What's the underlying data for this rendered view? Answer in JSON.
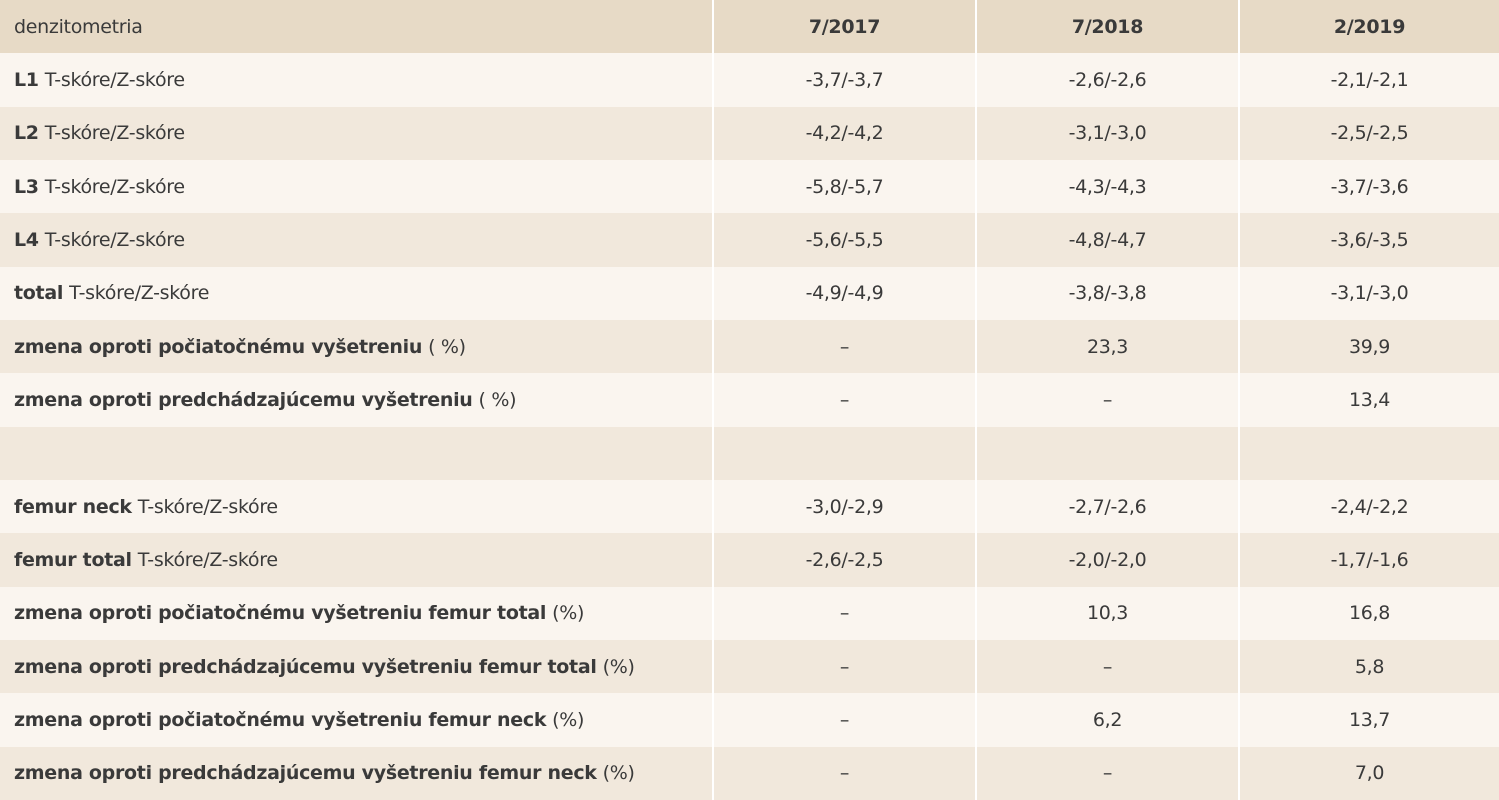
{
  "table": {
    "header": {
      "label": "denzitometria",
      "columns": [
        "7/2017",
        "7/2018",
        "2/2019"
      ]
    },
    "spine_rows": [
      {
        "bold": "L1",
        "normal": "T-skóre/Z-skóre",
        "values": [
          "-3,7/-3,7",
          "-2,6/-2,6",
          "-2,1/-2,1"
        ]
      },
      {
        "bold": "L2",
        "normal": "T-skóre/Z-skóre",
        "values": [
          "-4,2/-4,2",
          "-3,1/-3,0",
          "-2,5/-2,5"
        ]
      },
      {
        "bold": "L3",
        "normal": "T-skóre/Z-skóre",
        "values": [
          "-5,8/-5,7",
          "-4,3/-4,3",
          "-3,7/-3,6"
        ]
      },
      {
        "bold": "L4",
        "normal": "T-skóre/Z-skóre",
        "values": [
          "-5,6/-5,5",
          "-4,8/-4,7",
          "-3,6/-3,5"
        ]
      },
      {
        "bold": "total",
        "normal": "T-skóre/Z-skóre",
        "values": [
          "-4,9/-4,9",
          "-3,8/-3,8",
          "-3,1/-3,0"
        ]
      },
      {
        "bold": "zmena oproti počiatočnému vyšetreniu",
        "normal": "( %)",
        "values": [
          "–",
          "23,3",
          "39,9"
        ]
      },
      {
        "bold": "zmena oproti predchádzajúcemu vyšetreniu",
        "normal": "( %)",
        "values": [
          "–",
          "–",
          "13,4"
        ]
      }
    ],
    "femur_rows": [
      {
        "bold": "femur neck",
        "normal": "T-skóre/Z-skóre",
        "values": [
          "-3,0/-2,9",
          "-2,7/-2,6",
          "-2,4/-2,2"
        ]
      },
      {
        "bold": "femur total",
        "normal": "T-skóre/Z-skóre",
        "values": [
          "-2,6/-2,5",
          "-2,0/-2,0",
          "-1,7/-1,6"
        ]
      },
      {
        "bold": "zmena oproti počiatočnému vyšetreniu femur total",
        "normal": "(%)",
        "values": [
          "–",
          "10,3",
          "16,8"
        ]
      },
      {
        "bold": "zmena oproti predchádzajúcemu vyšetreniu femur total",
        "normal": "(%)",
        "values": [
          "–",
          "–",
          "5,8"
        ]
      },
      {
        "bold": "zmena oproti počiatočnému vyšetreniu femur neck",
        "normal": "(%)",
        "values": [
          "–",
          "6,2",
          "13,7"
        ]
      },
      {
        "bold": "zmena oproti predchádzajúcemu vyšetreniu femur neck",
        "normal": "(%)",
        "values": [
          "–",
          "–",
          "7,0"
        ]
      }
    ]
  }
}
